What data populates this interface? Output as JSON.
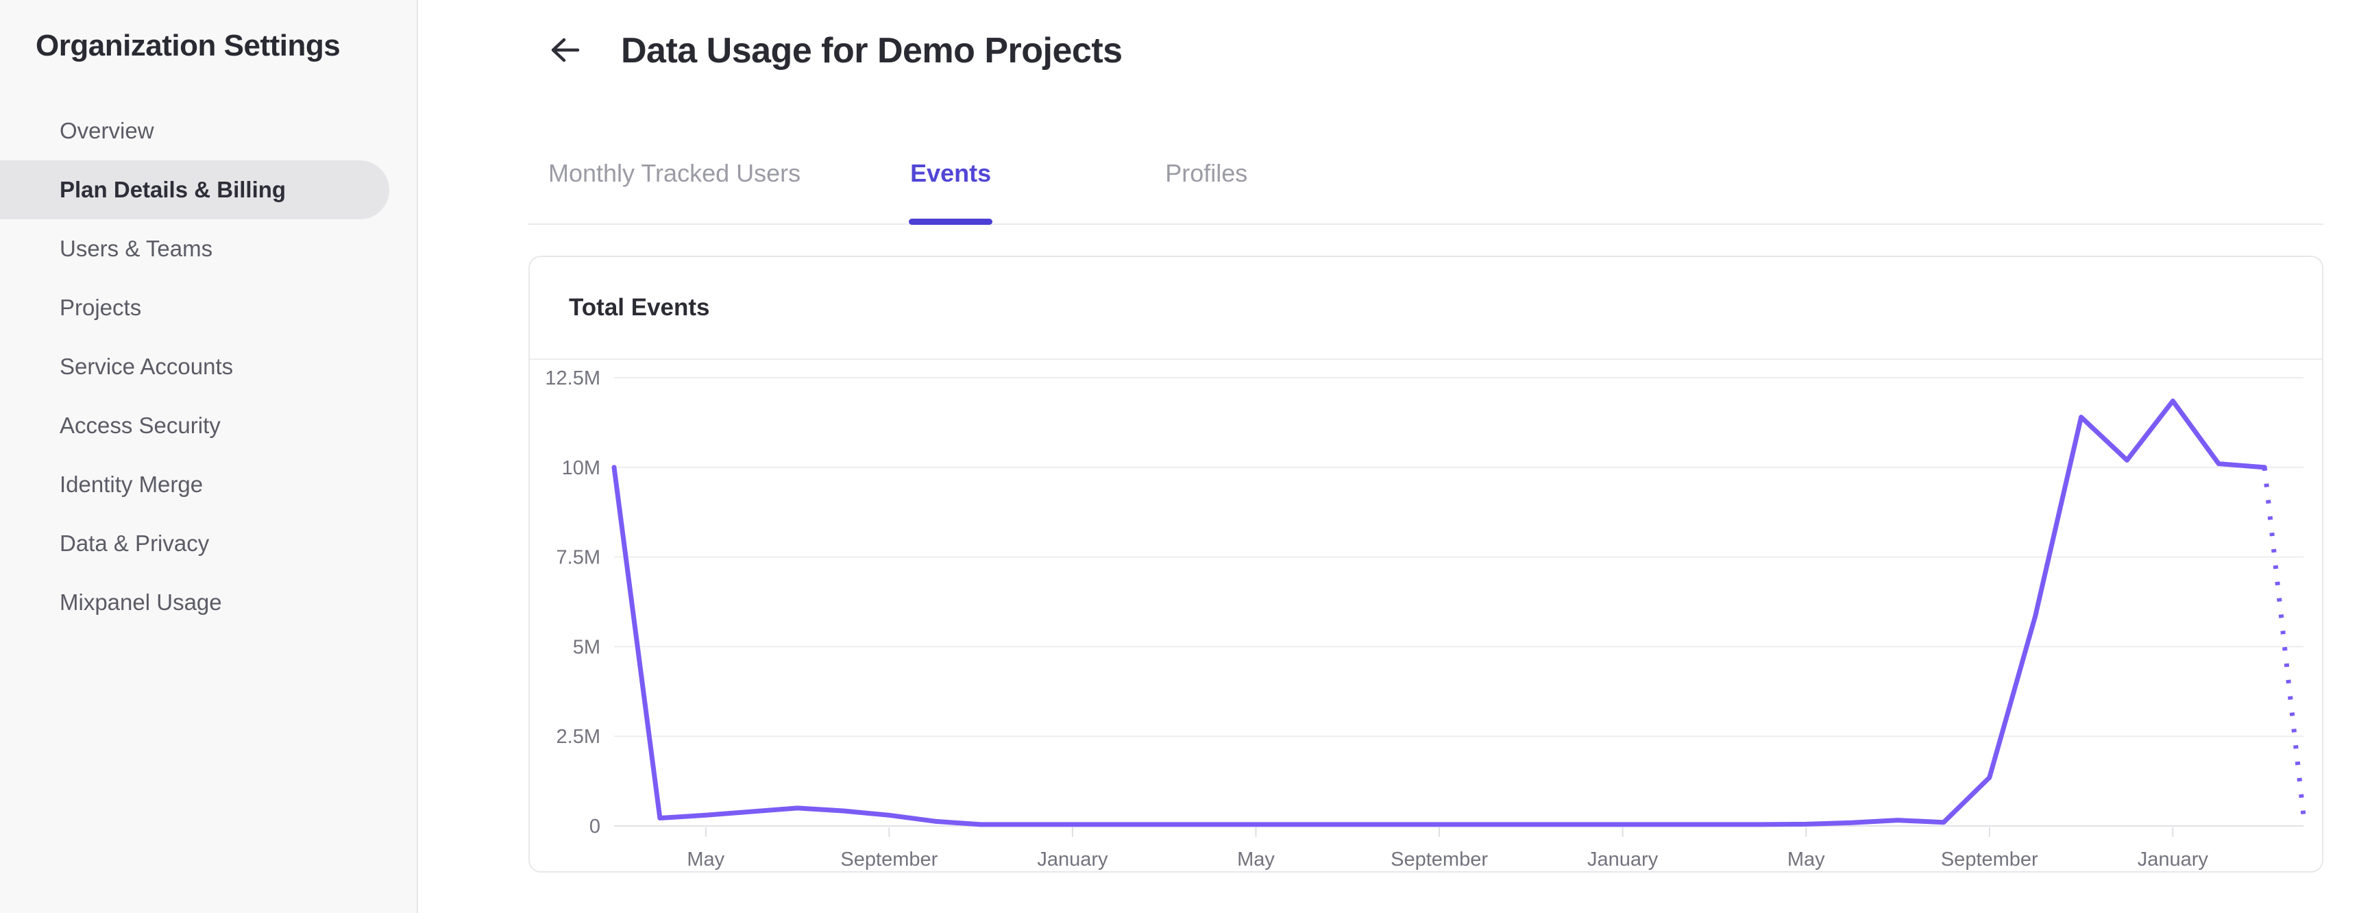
{
  "sidebar": {
    "title": "Organization Settings",
    "items": [
      {
        "label": "Overview",
        "selected": false
      },
      {
        "label": "Plan Details & Billing",
        "selected": true
      },
      {
        "label": "Users & Teams",
        "selected": false
      },
      {
        "label": "Projects",
        "selected": false
      },
      {
        "label": "Service Accounts",
        "selected": false
      },
      {
        "label": "Access Security",
        "selected": false
      },
      {
        "label": "Identity Merge",
        "selected": false
      },
      {
        "label": "Data & Privacy",
        "selected": false
      },
      {
        "label": "Mixpanel Usage",
        "selected": false
      }
    ]
  },
  "header": {
    "title": "Data Usage for Demo Projects",
    "back_icon": "left-arrow"
  },
  "tabs": [
    {
      "label": "Monthly Tracked Users",
      "active": false
    },
    {
      "label": "Events",
      "active": true
    },
    {
      "label": "Profiles",
      "active": false
    }
  ],
  "card": {
    "title": "Total Events"
  },
  "colors": {
    "chart_line": "#7a5cf5",
    "tab_active": "#5246d6",
    "tab_underline": "#4c3fd6",
    "grid_line": "#ededf0",
    "axis_line": "#e2e2e6",
    "tick_mark": "#dfdfe3",
    "axis_label": "#73737d",
    "sidebar_bg": "#f8f8f9",
    "sidebar_selected_bg": "#e5e5e8"
  },
  "chart_data": {
    "type": "line",
    "title": "Total Events",
    "xlabel": "",
    "ylabel": "",
    "grid": true,
    "legend_position": "none",
    "unit": "events (millions)",
    "ylim_m": [
      0,
      12.5
    ],
    "xlim_index": [
      0,
      36.85
    ],
    "y_ticks": [
      {
        "value_m": 12.5,
        "label": "12.5M"
      },
      {
        "value_m": 10,
        "label": "10M"
      },
      {
        "value_m": 7.5,
        "label": "7.5M"
      },
      {
        "value_m": 5,
        "label": "5M"
      },
      {
        "value_m": 2.5,
        "label": "2.5M"
      },
      {
        "value_m": 0,
        "label": "0"
      }
    ],
    "x_ticks": [
      {
        "index": 2,
        "label": "May"
      },
      {
        "index": 6,
        "label": "September"
      },
      {
        "index": 10,
        "label": "January"
      },
      {
        "index": 14,
        "label": "May"
      },
      {
        "index": 18,
        "label": "September"
      },
      {
        "index": 22,
        "label": "January"
      },
      {
        "index": 26,
        "label": "May"
      },
      {
        "index": 30,
        "label": "September"
      },
      {
        "index": 34,
        "label": "January"
      }
    ],
    "series": [
      {
        "name": "Total Events",
        "style": "solid",
        "values_m": [
          10.0,
          0.22,
          0.3,
          0.4,
          0.5,
          0.42,
          0.3,
          0.13,
          0.04,
          0.04,
          0.04,
          0.04,
          0.04,
          0.04,
          0.04,
          0.04,
          0.04,
          0.04,
          0.04,
          0.04,
          0.04,
          0.04,
          0.04,
          0.04,
          0.04,
          0.04,
          0.05,
          0.09,
          0.16,
          0.1,
          1.35,
          5.85,
          11.4,
          10.2,
          11.85,
          10.1,
          10.0
        ],
        "projection": {
          "style": "dotted",
          "from_index": 36,
          "to_index": 36.85,
          "to_value_m": 0.3
        }
      }
    ]
  }
}
